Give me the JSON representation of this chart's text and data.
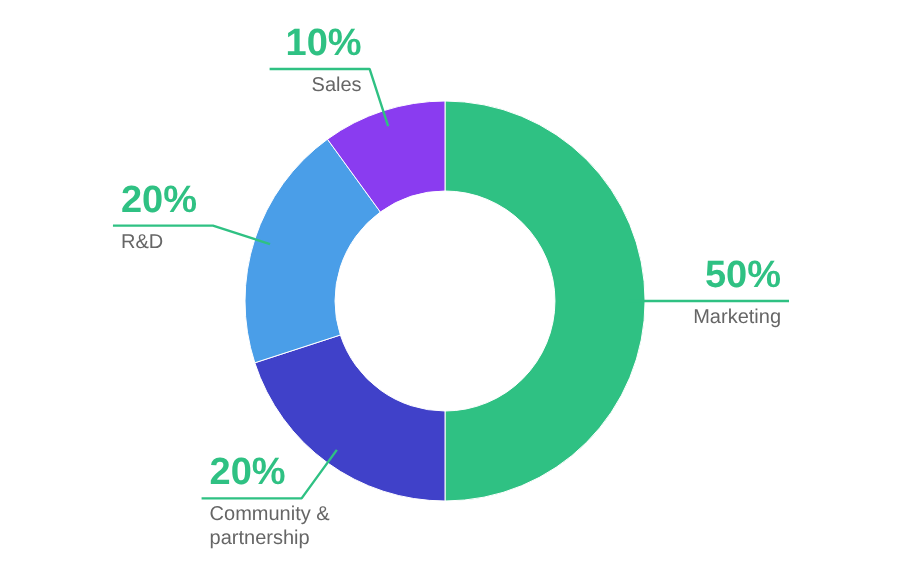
{
  "chart_data": {
    "type": "donut",
    "categories": [
      "Marketing",
      "Community & partnership",
      "R&D",
      "Sales"
    ],
    "values": [
      50,
      20,
      20,
      10
    ],
    "colors": [
      "#2fc183",
      "#4041c9",
      "#4a9ee8",
      "#8a3cf0"
    ],
    "value_labels": [
      "50%",
      "20%",
      "20%",
      "10%"
    ]
  }
}
